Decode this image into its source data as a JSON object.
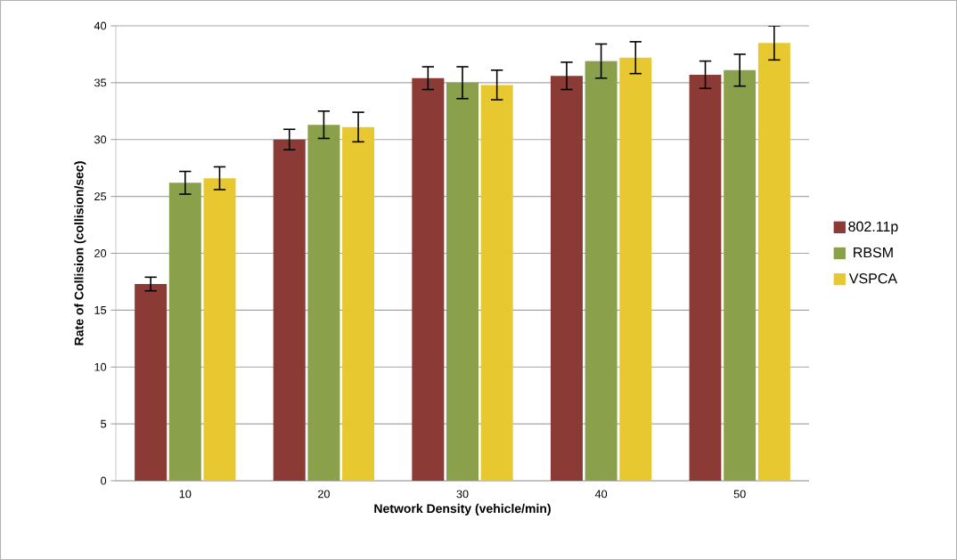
{
  "chart_data": {
    "type": "bar",
    "xlabel": "Network Density (vehicle/min)",
    "ylabel": "Rate of Collision (collision/sec)",
    "categories": [
      "10",
      "20",
      "30",
      "40",
      "50"
    ],
    "series": [
      {
        "name": "802.11p",
        "color": "#8b3a36",
        "values": [
          17.3,
          30.0,
          35.4,
          35.6,
          35.7
        ],
        "errors": [
          0.6,
          0.9,
          1.0,
          1.2,
          1.2
        ]
      },
      {
        "name": "RBSM",
        "color": "#8aa04a",
        "values": [
          26.2,
          31.3,
          35.0,
          36.9,
          36.1
        ],
        "errors": [
          1.0,
          1.2,
          1.4,
          1.5,
          1.4
        ]
      },
      {
        "name": "VSPCA",
        "color": "#e8c830",
        "values": [
          26.6,
          31.1,
          34.8,
          37.2,
          38.5
        ],
        "errors": [
          1.0,
          1.3,
          1.3,
          1.4,
          1.5
        ]
      }
    ],
    "ylim": [
      0,
      40
    ],
    "yticks": [
      0,
      5,
      10,
      15,
      20,
      25,
      30,
      35,
      40
    ],
    "grid": "y",
    "legend": "right"
  }
}
